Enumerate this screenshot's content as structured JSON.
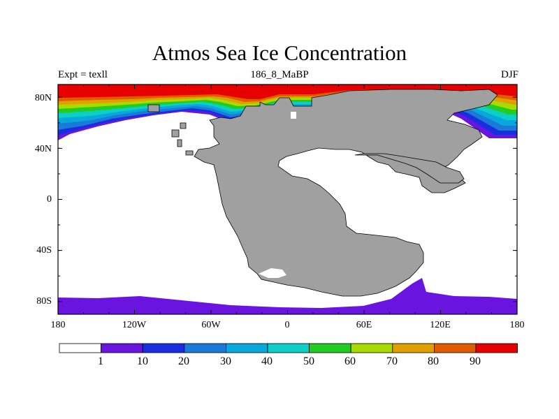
{
  "title": "Atmos Sea Ice Concentration",
  "experiment": "Expt = texll",
  "run_id": "186_8_MaBP",
  "season": "DJF",
  "axes": {
    "lat_labels": [
      "80N",
      "40N",
      "0",
      "40S",
      "80S"
    ],
    "lon_labels": [
      "180",
      "120W",
      "60W",
      "0",
      "60E",
      "120E",
      "180"
    ]
  },
  "colorbar": {
    "labels": [
      "1",
      "10",
      "20",
      "30",
      "40",
      "50",
      "60",
      "70",
      "80",
      "90"
    ],
    "colors": [
      "#ffffff",
      "#6a14e0",
      "#1a2ee0",
      "#1b7ad8",
      "#08a8dc",
      "#0ccfc6",
      "#22cc22",
      "#a8dc00",
      "#e0a000",
      "#e05c00",
      "#e60000"
    ]
  },
  "chart_data": {
    "type": "contour-map",
    "variable": "Atmos Sea Ice Concentration",
    "units": "%",
    "levels": [
      1,
      10,
      20,
      30,
      40,
      50,
      60,
      70,
      80,
      90
    ],
    "lon_range": [
      -180,
      180
    ],
    "lat_range": [
      -90,
      90
    ],
    "land_color": "#a0a0a0",
    "features": [
      {
        "name": "arctic-ice-cap",
        "value_range": [
          90,
          100
        ],
        "lat_range": [
          75,
          90
        ]
      },
      {
        "name": "arctic-ice-edge-gradient",
        "value_range": [
          1,
          90
        ],
        "lat_range": [
          50,
          75
        ]
      },
      {
        "name": "antarctic-ice-band",
        "value_range": [
          1,
          10
        ],
        "lat_range": [
          -90,
          -75
        ]
      }
    ]
  }
}
